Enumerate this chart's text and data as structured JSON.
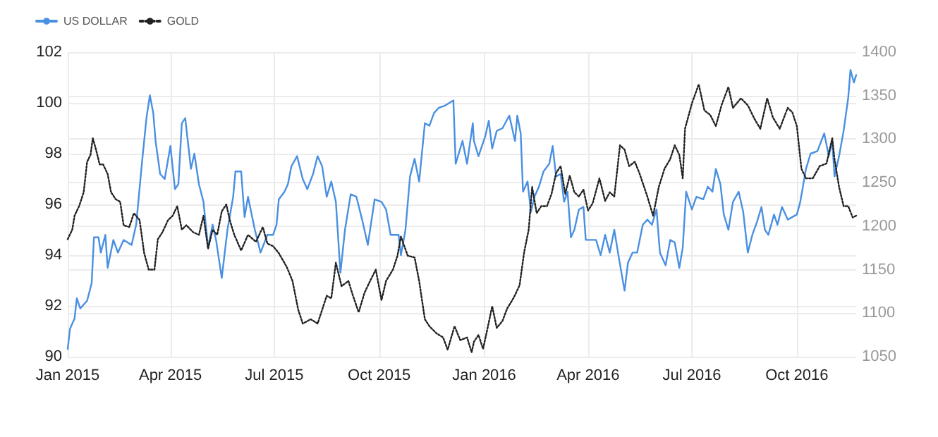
{
  "chart_data": {
    "type": "line",
    "legend": "top left",
    "grid": true,
    "marker": "none",
    "xlim": [
      "2015-01-01",
      "2016-11-22"
    ],
    "xticks": [
      {
        "value": "2015-01-01",
        "label": "Jan 2015"
      },
      {
        "value": "2015-04-01",
        "label": "Apr 2015"
      },
      {
        "value": "2015-07-01",
        "label": "Jul 2015"
      },
      {
        "value": "2015-10-01",
        "label": "Oct 2015"
      },
      {
        "value": "2016-01-01",
        "label": "Jan 2016"
      },
      {
        "value": "2016-04-01",
        "label": "Apr 2016"
      },
      {
        "value": "2016-07-01",
        "label": "Jul 2016"
      },
      {
        "value": "2016-10-01",
        "label": "Oct 2016"
      }
    ],
    "ylim": [
      90,
      102
    ],
    "yticks": [
      90,
      92,
      94,
      96,
      98,
      100,
      102
    ],
    "y2lim": [
      1050,
      1400
    ],
    "y2ticks": [
      1050,
      1100,
      1150,
      1200,
      1250,
      1300,
      1350,
      1400
    ],
    "series": [
      {
        "name": "US DOLLAR",
        "color": "#4a90e2",
        "line_style": "solid",
        "x": [
          "2015-01-01",
          "2015-01-03",
          "2015-01-07",
          "2015-01-09",
          "2015-01-12",
          "2015-01-18",
          "2015-01-22",
          "2015-01-24",
          "2015-01-28",
          "2015-01-30",
          "2015-02-03",
          "2015-02-05",
          "2015-02-10",
          "2015-02-14",
          "2015-02-19",
          "2015-02-26",
          "2015-03-02",
          "2015-03-07",
          "2015-03-11",
          "2015-03-14",
          "2015-03-17",
          "2015-03-19",
          "2015-03-23",
          "2015-03-27",
          "2015-04-01",
          "2015-04-05",
          "2015-04-08",
          "2015-04-11",
          "2015-04-14",
          "2015-04-19",
          "2015-04-22",
          "2015-04-26",
          "2015-04-30",
          "2015-05-04",
          "2015-05-08",
          "2015-05-11",
          "2015-05-16",
          "2015-05-21",
          "2015-05-26",
          "2015-05-28",
          "2015-06-02",
          "2015-06-05",
          "2015-06-08",
          "2015-06-14",
          "2015-06-19",
          "2015-06-25",
          "2015-06-30",
          "2015-07-03",
          "2015-07-05",
          "2015-07-10",
          "2015-07-13",
          "2015-07-16",
          "2015-07-21",
          "2015-07-26",
          "2015-07-30",
          "2015-08-04",
          "2015-08-08",
          "2015-08-12",
          "2015-08-16",
          "2015-08-20",
          "2015-08-24",
          "2015-08-28",
          "2015-09-01",
          "2015-09-06",
          "2015-09-11",
          "2015-09-16",
          "2015-09-21",
          "2015-09-27",
          "2015-10-03",
          "2015-10-07",
          "2015-10-11",
          "2015-10-18",
          "2015-10-20",
          "2015-10-24",
          "2015-10-28",
          "2015-11-01",
          "2015-11-05",
          "2015-11-10",
          "2015-11-14",
          "2015-11-18",
          "2015-11-22",
          "2015-11-28",
          "2015-12-05",
          "2015-12-07",
          "2015-12-13",
          "2015-12-17",
          "2015-12-22",
          "2015-12-23",
          "2015-12-27",
          "2016-01-02",
          "2016-01-05",
          "2016-01-08",
          "2016-01-12",
          "2016-01-17",
          "2016-01-23",
          "2016-01-28",
          "2016-01-30",
          "2016-02-02",
          "2016-02-04",
          "2016-02-08",
          "2016-02-11",
          "2016-02-14",
          "2016-02-18",
          "2016-02-22",
          "2016-02-27",
          "2016-03-01",
          "2016-03-04",
          "2016-03-08",
          "2016-03-11",
          "2016-03-14",
          "2016-03-17",
          "2016-03-20",
          "2016-03-24",
          "2016-03-28",
          "2016-03-30",
          "2016-04-03",
          "2016-04-08",
          "2016-04-12",
          "2016-04-16",
          "2016-04-20",
          "2016-04-24",
          "2016-04-28",
          "2016-05-03",
          "2016-05-06",
          "2016-05-10",
          "2016-05-14",
          "2016-05-19",
          "2016-05-23",
          "2016-05-27",
          "2016-05-31",
          "2016-06-03",
          "2016-06-08",
          "2016-06-12",
          "2016-06-16",
          "2016-06-20",
          "2016-06-23",
          "2016-06-26",
          "2016-07-01",
          "2016-07-05",
          "2016-07-11",
          "2016-07-15",
          "2016-07-19",
          "2016-07-22",
          "2016-07-26",
          "2016-07-29",
          "2016-08-02",
          "2016-08-06",
          "2016-08-11",
          "2016-08-15",
          "2016-08-19",
          "2016-08-23",
          "2016-08-27",
          "2016-08-31",
          "2016-09-03",
          "2016-09-06",
          "2016-09-11",
          "2016-09-14",
          "2016-09-18",
          "2016-09-23",
          "2016-10-01",
          "2016-10-04",
          "2016-10-09",
          "2016-10-13",
          "2016-10-19",
          "2016-10-25",
          "2016-10-29",
          "2016-11-01",
          "2016-11-03",
          "2016-11-07",
          "2016-11-11",
          "2016-11-15",
          "2016-11-17",
          "2016-11-20",
          "2016-11-22"
        ],
        "values": [
          90.3,
          91.1,
          91.5,
          92.3,
          91.9,
          92.2,
          92.9,
          94.7,
          94.7,
          94.1,
          94.8,
          93.5,
          94.6,
          94.1,
          94.6,
          94.4,
          95.2,
          97.6,
          99.4,
          100.3,
          99.6,
          98.5,
          97.2,
          97.0,
          98.3,
          96.6,
          96.8,
          99.2,
          99.4,
          97.4,
          98.0,
          96.8,
          96.1,
          94.3,
          95.2,
          94.6,
          93.1,
          95.0,
          96.3,
          97.3,
          97.3,
          95.5,
          96.3,
          95.0,
          94.1,
          94.8,
          94.8,
          95.2,
          96.2,
          96.5,
          96.8,
          97.5,
          97.9,
          97.0,
          96.6,
          97.2,
          97.9,
          97.5,
          96.3,
          96.9,
          96.1,
          93.3,
          95.0,
          96.4,
          96.3,
          95.4,
          94.4,
          96.2,
          96.1,
          95.8,
          94.8,
          94.8,
          94.0,
          95.0,
          97.1,
          97.8,
          96.9,
          99.2,
          99.1,
          99.6,
          99.8,
          99.9,
          100.1,
          97.6,
          98.5,
          97.6,
          99.2,
          98.5,
          97.9,
          98.7,
          99.3,
          98.2,
          98.9,
          99.0,
          99.5,
          98.5,
          99.5,
          98.8,
          96.5,
          96.9,
          95.7,
          96.3,
          96.7,
          97.3,
          97.6,
          98.3,
          97.1,
          97.2,
          96.1,
          96.5,
          94.7,
          95.0,
          95.8,
          95.9,
          94.6,
          94.6,
          94.6,
          94.0,
          94.8,
          94.1,
          95.0,
          93.9,
          92.6,
          93.7,
          94.1,
          94.1,
          95.2,
          95.4,
          95.2,
          95.8,
          94.1,
          93.6,
          94.6,
          94.5,
          93.5,
          94.3,
          96.5,
          95.8,
          96.3,
          96.2,
          96.7,
          96.5,
          97.4,
          96.8,
          95.6,
          95.0,
          96.1,
          96.5,
          95.7,
          94.1,
          94.8,
          95.3,
          95.9,
          95.0,
          94.8,
          95.6,
          95.2,
          95.9,
          95.4,
          95.6,
          96.1,
          97.4,
          98.0,
          98.1,
          98.8,
          97.9,
          98.5,
          97.1,
          97.9,
          98.9,
          100.2,
          101.3,
          100.8,
          101.1
        ]
      },
      {
        "name": "GOLD",
        "color": "#222222",
        "line_style": "dotted",
        "axis": "y2",
        "x": [
          "2015-01-01",
          "2015-01-05",
          "2015-01-07",
          "2015-01-11",
          "2015-01-15",
          "2015-01-18",
          "2015-01-21",
          "2015-01-23",
          "2015-01-26",
          "2015-01-29",
          "2015-02-01",
          "2015-02-05",
          "2015-02-08",
          "2015-02-12",
          "2015-02-16",
          "2015-02-19",
          "2015-02-24",
          "2015-02-28",
          "2015-03-05",
          "2015-03-09",
          "2015-03-13",
          "2015-03-18",
          "2015-03-21",
          "2015-03-25",
          "2015-03-30",
          "2015-04-03",
          "2015-04-07",
          "2015-04-11",
          "2015-04-15",
          "2015-04-21",
          "2015-04-26",
          "2015-04-30",
          "2015-05-04",
          "2015-05-08",
          "2015-05-12",
          "2015-05-16",
          "2015-05-20",
          "2015-05-23",
          "2015-05-27",
          "2015-06-02",
          "2015-06-08",
          "2015-06-15",
          "2015-06-21",
          "2015-06-25",
          "2015-06-30",
          "2015-07-05",
          "2015-07-12",
          "2015-07-17",
          "2015-07-22",
          "2015-07-26",
          "2015-08-02",
          "2015-08-08",
          "2015-08-12",
          "2015-08-16",
          "2015-08-20",
          "2015-08-24",
          "2015-08-29",
          "2015-09-04",
          "2015-09-08",
          "2015-09-13",
          "2015-09-18",
          "2015-09-23",
          "2015-09-28",
          "2015-10-03",
          "2015-10-07",
          "2015-10-13",
          "2015-10-17",
          "2015-10-20",
          "2015-10-26",
          "2015-11-01",
          "2015-11-05",
          "2015-11-10",
          "2015-11-14",
          "2015-11-20",
          "2015-11-26",
          "2015-11-30",
          "2015-12-06",
          "2015-12-11",
          "2015-12-17",
          "2015-12-21",
          "2015-12-23",
          "2015-12-27",
          "2015-12-31",
          "2016-01-04",
          "2016-01-08",
          "2016-01-12",
          "2016-01-17",
          "2016-01-21",
          "2016-01-27",
          "2016-02-01",
          "2016-02-05",
          "2016-02-09",
          "2016-02-12",
          "2016-02-16",
          "2016-02-20",
          "2016-02-25",
          "2016-02-29",
          "2016-03-04",
          "2016-03-08",
          "2016-03-12",
          "2016-03-16",
          "2016-03-20",
          "2016-03-24",
          "2016-03-28",
          "2016-04-01",
          "2016-04-05",
          "2016-04-11",
          "2016-04-16",
          "2016-04-20",
          "2016-04-24",
          "2016-04-29",
          "2016-05-03",
          "2016-05-07",
          "2016-05-12",
          "2016-05-16",
          "2016-05-23",
          "2016-05-28",
          "2016-06-02",
          "2016-06-07",
          "2016-06-12",
          "2016-06-16",
          "2016-06-20",
          "2016-06-23",
          "2016-06-25",
          "2016-07-01",
          "2016-07-07",
          "2016-07-12",
          "2016-07-17",
          "2016-07-22",
          "2016-07-27",
          "2016-08-02",
          "2016-08-06",
          "2016-08-13",
          "2016-08-19",
          "2016-08-25",
          "2016-08-30",
          "2016-09-05",
          "2016-09-10",
          "2016-09-16",
          "2016-09-23",
          "2016-09-27",
          "2016-10-01",
          "2016-10-05",
          "2016-10-09",
          "2016-10-15",
          "2016-10-21",
          "2016-10-27",
          "2016-11-01",
          "2016-11-03",
          "2016-11-07",
          "2016-11-11",
          "2016-11-15",
          "2016-11-19",
          "2016-11-22"
        ],
        "values": [
          1185,
          1196,
          1212,
          1223,
          1239,
          1274,
          1282,
          1301,
          1287,
          1271,
          1271,
          1260,
          1239,
          1231,
          1228,
          1201,
          1199,
          1215,
          1207,
          1169,
          1150,
          1150,
          1185,
          1193,
          1207,
          1212,
          1223,
          1196,
          1201,
          1193,
          1190,
          1212,
          1174,
          1196,
          1190,
          1217,
          1225,
          1207,
          1190,
          1172,
          1190,
          1182,
          1199,
          1180,
          1177,
          1169,
          1153,
          1137,
          1104,
          1088,
          1093,
          1088,
          1104,
          1120,
          1117,
          1158,
          1131,
          1137,
          1120,
          1101,
          1123,
          1137,
          1150,
          1115,
          1137,
          1150,
          1166,
          1188,
          1166,
          1164,
          1137,
          1093,
          1085,
          1077,
          1072,
          1058,
          1085,
          1069,
          1072,
          1055,
          1067,
          1075,
          1059,
          1083,
          1108,
          1083,
          1091,
          1105,
          1118,
          1132,
          1170,
          1196,
          1245,
          1215,
          1223,
          1223,
          1237,
          1261,
          1269,
          1237,
          1258,
          1239,
          1234,
          1242,
          1218,
          1226,
          1255,
          1229,
          1239,
          1234,
          1293,
          1288,
          1269,
          1274,
          1261,
          1234,
          1212,
          1245,
          1266,
          1277,
          1293,
          1282,
          1255,
          1312,
          1341,
          1363,
          1333,
          1328,
          1315,
          1339,
          1360,
          1336,
          1347,
          1339,
          1323,
          1312,
          1347,
          1325,
          1312,
          1336,
          1331,
          1315,
          1266,
          1255,
          1255,
          1269,
          1272,
          1301,
          1277,
          1245,
          1223,
          1223,
          1210,
          1212
        ]
      }
    ]
  }
}
